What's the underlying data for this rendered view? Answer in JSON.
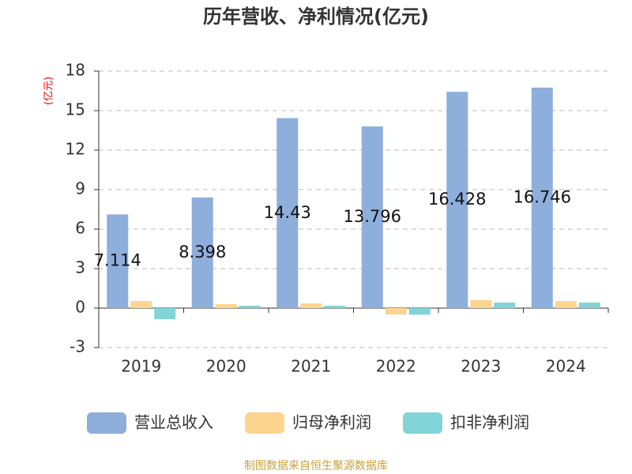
{
  "chart_data": {
    "type": "bar",
    "title": "历年营收、净利情况(亿元)",
    "y_label": "(亿元)",
    "categories": [
      "2019",
      "2020",
      "2021",
      "2022",
      "2023",
      "2024"
    ],
    "series": [
      {
        "name": "营业总收入",
        "color": "#8eaedb",
        "values": [
          7.114,
          8.398,
          14.43,
          13.796,
          16.428,
          16.746
        ]
      },
      {
        "name": "归母净利润",
        "color": "#fdd58f",
        "values": [
          0.54,
          0.3,
          0.36,
          -0.48,
          0.6,
          0.54
        ]
      },
      {
        "name": "扣非净利润",
        "color": "#82d4d6",
        "values": [
          -0.84,
          0.18,
          0.18,
          -0.5,
          0.42,
          0.42
        ]
      }
    ],
    "ylim": [
      -3,
      18
    ],
    "yticks": [
      -3,
      0,
      3,
      6,
      9,
      12,
      15,
      18
    ],
    "grid": true,
    "source": "制图数据来自恒生聚源数据库"
  }
}
